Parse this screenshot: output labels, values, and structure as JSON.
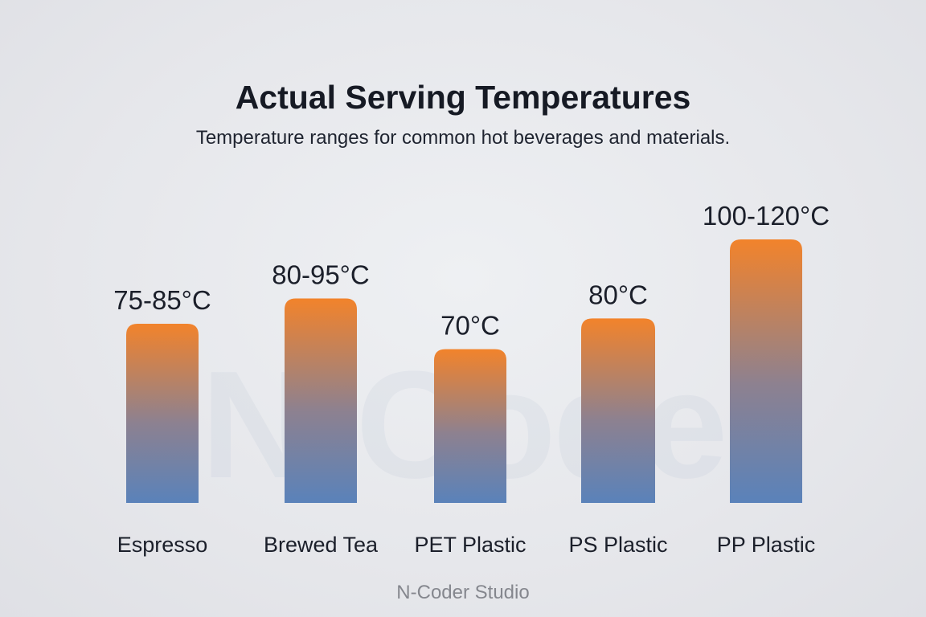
{
  "title": "Actual Serving Temperatures",
  "subtitle": "Temperature ranges for common hot beverages and materials.",
  "footer": "N-Coder Studio",
  "watermark": "N-Coder",
  "colors": {
    "bar_top": "#f2832b",
    "bar_mid": "#8d8190",
    "bar_bottom": "#5a82ba",
    "text": "#1b1f2a",
    "footer": "#85878e"
  },
  "chart_data": {
    "type": "bar",
    "title": "Actual Serving Temperatures",
    "subtitle": "Temperature ranges for common hot beverages and materials.",
    "xlabel": "",
    "ylabel": "",
    "categories": [
      "Espresso",
      "Brewed Tea",
      "PET Plastic",
      "PS Plastic",
      "PP Plastic"
    ],
    "values": [
      85,
      95,
      70,
      80,
      120
    ],
    "ranges": [
      [
        75,
        85
      ],
      [
        80,
        95
      ],
      [
        70,
        70
      ],
      [
        80,
        80
      ],
      [
        100,
        120
      ]
    ],
    "data_labels": [
      "75-85°C",
      "80-95°C",
      "70°C",
      "80°C",
      "100-120°C"
    ],
    "ylim": [
      0,
      120
    ],
    "grid": false,
    "legend": "none"
  }
}
